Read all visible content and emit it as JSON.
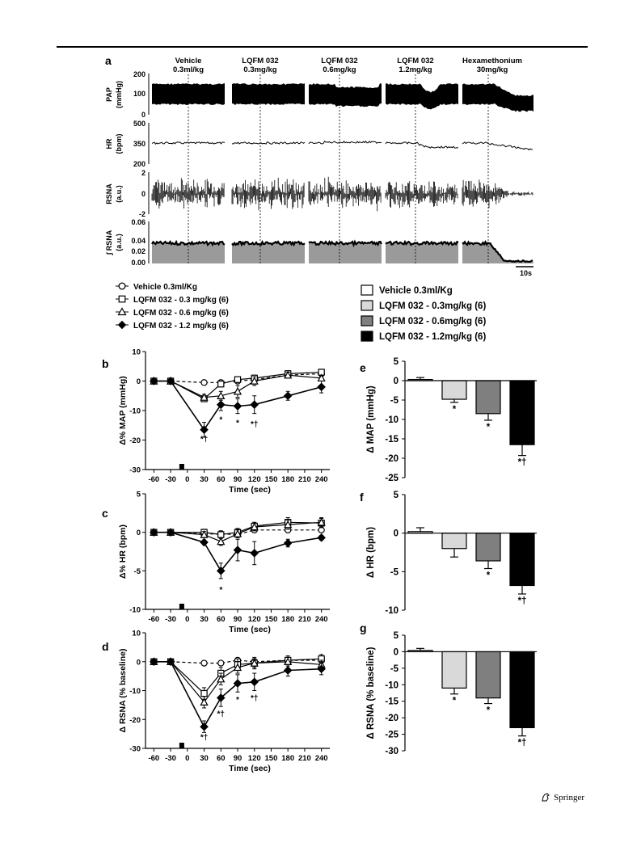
{
  "header": {
    "rule": true
  },
  "footer": {
    "publisher": "Springer",
    "logo_icon": "springer-horse-icon"
  },
  "panel_a": {
    "letter": "a",
    "segments": [
      {
        "title1": "Vehicle",
        "title2": "0.3ml/kg"
      },
      {
        "title1": "LQFM 032",
        "title2": "0.3mg/kg"
      },
      {
        "title1": "LQFM 032",
        "title2": "0.6mg/kg"
      },
      {
        "title1": "LQFM 032",
        "title2": "1.2mg/kg"
      },
      {
        "title1": "Hexamethonium",
        "title2": "30mg/kg"
      }
    ],
    "traces": [
      {
        "name": "PAP",
        "unit": "(mmHg)",
        "ticks": [
          "200",
          "100",
          "0"
        ]
      },
      {
        "name": "HR",
        "unit": "(bpm)",
        "ticks": [
          "500",
          "350",
          "200"
        ]
      },
      {
        "name": "RSNA",
        "unit": "(a.u.)",
        "ticks": [
          "2",
          "0",
          "-2"
        ]
      },
      {
        "name": "∫ RSNA",
        "unit": "(a.u.)",
        "ticks": [
          "0.06",
          "0.04",
          "0.02",
          "0.00"
        ]
      }
    ],
    "scale_bar": "10s"
  },
  "legend_line": [
    {
      "label": "Vehicle 0.3ml/Kg",
      "marker": "circle-open"
    },
    {
      "label": "LQFM 032 - 0.3 mg/kg (6)",
      "marker": "square-open"
    },
    {
      "label": "LQFM 032 - 0.6 mg/kg (6)",
      "marker": "triangle-open"
    },
    {
      "label": "LQFM 032 - 1.2 mg/kg (6)",
      "marker": "diamond-filled"
    }
  ],
  "legend_bar": [
    {
      "label": "Vehicle 0.3ml/Kg",
      "color": "#ffffff"
    },
    {
      "label": "LQFM 032 - 0.3mg/kg (6)",
      "color": "#d9d9d9"
    },
    {
      "label": "LQFM 032 - 0.6mg/kg (6)",
      "color": "#7f7f7f"
    },
    {
      "label": "LQFM 032 - 1.2mg/kg (6)",
      "color": "#000000"
    }
  ],
  "chart_data": [
    {
      "panel": "b",
      "type": "line",
      "x": [
        -60,
        -30,
        30,
        60,
        90,
        120,
        180,
        240
      ],
      "xticks": [
        "-60",
        "-30",
        "0",
        "30",
        "60",
        "90",
        "120",
        "150",
        "180",
        "210",
        "240"
      ],
      "xlabel": "Time (sec)",
      "ylabel": "Δ% MAP (mmHg)",
      "ylim": [
        -30,
        10
      ],
      "yticks": [
        "10",
        "0",
        "-10",
        "-20",
        "-30"
      ],
      "series": [
        {
          "values": [
            0,
            0,
            -0.5,
            -0.5,
            0,
            0.5,
            2,
            2.5
          ],
          "errors": [
            0.3,
            0.3,
            0.3,
            0.5,
            0.5,
            0.5,
            1,
            1
          ]
        },
        {
          "values": [
            0,
            0,
            -6,
            -1,
            0.5,
            1,
            2.5,
            3
          ],
          "errors": [
            0.3,
            0.3,
            0.8,
            1,
            1,
            1,
            1,
            1
          ]
        },
        {
          "values": [
            0,
            0,
            -5.5,
            -5,
            -3.5,
            0,
            2,
            1
          ],
          "errors": [
            0.3,
            0.3,
            1,
            1.5,
            2,
            1.5,
            1,
            1
          ]
        },
        {
          "values": [
            0,
            0,
            -16.5,
            -8,
            -8.5,
            -8,
            -5,
            -2
          ],
          "errors": [
            0.3,
            0.3,
            2.5,
            2,
            2.5,
            3,
            1.5,
            2
          ]
        }
      ],
      "annotations": [
        "*†",
        "*",
        "*",
        "*†"
      ]
    },
    {
      "panel": "c",
      "type": "line",
      "x": [
        -60,
        -30,
        30,
        60,
        90,
        120,
        180,
        240
      ],
      "xticks": [
        "-60",
        "-30",
        "0",
        "30",
        "60",
        "90",
        "120",
        "150",
        "180",
        "210",
        "240"
      ],
      "xlabel": "Time (sec)",
      "ylabel": "Δ% HR (bpm)",
      "ylim": [
        -10,
        5
      ],
      "yticks": [
        "5",
        "0",
        "-5",
        "-10"
      ],
      "series": [
        {
          "values": [
            0,
            0,
            -0.2,
            -0.2,
            -0.3,
            0.3,
            0.3,
            0.3
          ],
          "errors": [
            0.2,
            0.2,
            0.3,
            0.3,
            0.3,
            0.3,
            0.3,
            0.3
          ]
        },
        {
          "values": [
            0,
            0,
            0,
            -0.3,
            0,
            0.8,
            1.3,
            1.2
          ],
          "errors": [
            0.2,
            0.2,
            0.4,
            0.5,
            0.5,
            0.5,
            0.6,
            0.6
          ]
        },
        {
          "values": [
            0,
            0,
            -0.3,
            -1.2,
            -0.2,
            0.7,
            1,
            1.3
          ],
          "errors": [
            0.2,
            0.2,
            0.4,
            0.5,
            0.5,
            0.5,
            0.6,
            0.6
          ]
        },
        {
          "values": [
            0,
            0,
            -1.3,
            -5,
            -2.3,
            -2.7,
            -1.4,
            -0.7
          ],
          "errors": [
            0.2,
            0.2,
            0.3,
            1,
            1.4,
            1.5,
            0.5,
            0.3
          ]
        }
      ],
      "annotations": [
        "*"
      ]
    },
    {
      "panel": "d",
      "type": "line",
      "x": [
        -60,
        -30,
        30,
        60,
        90,
        120,
        180,
        240
      ],
      "xticks": [
        "-60",
        "-30",
        "0",
        "30",
        "60",
        "90",
        "120",
        "150",
        "180",
        "210",
        "240"
      ],
      "xlabel": "Time (sec)",
      "ylabel": "Δ RSNA (% baseline)",
      "ylim": [
        -30,
        10
      ],
      "yticks": [
        "10",
        "0",
        "-10",
        "-20",
        "-30"
      ],
      "series": [
        {
          "values": [
            0,
            0,
            -0.5,
            -0.5,
            0.5,
            0,
            0.5,
            0.5
          ],
          "errors": [
            0.3,
            0.3,
            0.5,
            0.5,
            0.5,
            0.5,
            0.5,
            0.5
          ]
        },
        {
          "values": [
            0,
            0,
            -11,
            -4,
            -1,
            -0.5,
            0.5,
            1
          ],
          "errors": [
            0.3,
            0.3,
            2,
            2,
            2,
            1.5,
            1.5,
            1.5
          ]
        },
        {
          "values": [
            0,
            0,
            -14,
            -6,
            -2,
            -0.5,
            0,
            -1
          ],
          "errors": [
            0.3,
            0.3,
            2,
            2,
            2,
            2,
            1.5,
            1.5
          ]
        },
        {
          "values": [
            0,
            0,
            -22.5,
            -12.5,
            -7.5,
            -7,
            -3,
            -2.5
          ],
          "errors": [
            0.3,
            0.3,
            2,
            3,
            3,
            3,
            2,
            2
          ]
        }
      ],
      "annotations": [
        "*†",
        "*†",
        "*",
        "*†"
      ]
    },
    {
      "panel": "e",
      "type": "bar",
      "ylabel": "Δ MAP (mmHg)",
      "ylim": [
        -25,
        5
      ],
      "yticks": [
        "5",
        "0",
        "-5",
        "-10",
        "-15",
        "-20",
        "-25"
      ],
      "values": [
        0.3,
        -4.8,
        -8.5,
        -16.5
      ],
      "errors": [
        0.5,
        0.8,
        1.7,
        2.8
      ],
      "annotations": [
        "",
        "*",
        "*",
        "*†"
      ]
    },
    {
      "panel": "f",
      "type": "bar",
      "ylabel": "Δ HR (bpm)",
      "ylim": [
        -10,
        5
      ],
      "yticks": [
        "5",
        "0",
        "-5",
        "-10"
      ],
      "values": [
        0.2,
        -2,
        -3.6,
        -6.8
      ],
      "errors": [
        0.5,
        1.1,
        1,
        1.1
      ],
      "annotations": [
        "",
        "",
        "*",
        "*†"
      ]
    },
    {
      "panel": "g",
      "type": "bar",
      "ylabel": "Δ RSNA (% baseline)",
      "ylim": [
        -30,
        5
      ],
      "yticks": [
        "5",
        "0",
        "-5",
        "-10",
        "-15",
        "-20",
        "-25",
        "-30"
      ],
      "values": [
        0.4,
        -11,
        -14,
        -23
      ],
      "errors": [
        0.6,
        1.8,
        1.7,
        2.5
      ],
      "annotations": [
        "",
        "*",
        "*",
        "*†"
      ]
    }
  ]
}
